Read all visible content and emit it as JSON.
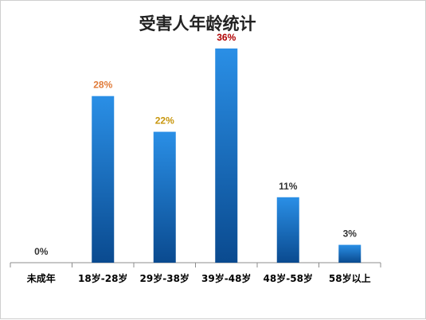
{
  "chart_data": {
    "type": "bar",
    "title": "受害人年龄统计",
    "xlabel": "",
    "ylabel": "",
    "categories": [
      "未成年",
      "18岁-28岁",
      "29岁-38岁",
      "39岁-48岁",
      "48岁-58岁",
      "58岁以上"
    ],
    "values": [
      0,
      28,
      22,
      36,
      11,
      3
    ],
    "data_labels": [
      "0%",
      "28%",
      "22%",
      "36%",
      "11%",
      "3%"
    ],
    "label_colors": [
      "#333333",
      "#e07b39",
      "#c8960c",
      "#b00000",
      "#333333",
      "#333333"
    ],
    "ylim": [
      0,
      40
    ],
    "grid": false,
    "legend": "none",
    "bar_color_top": "#2a8fe6",
    "bar_color_bottom": "#0a4a8f",
    "axis_color": "#8c8c8c"
  }
}
